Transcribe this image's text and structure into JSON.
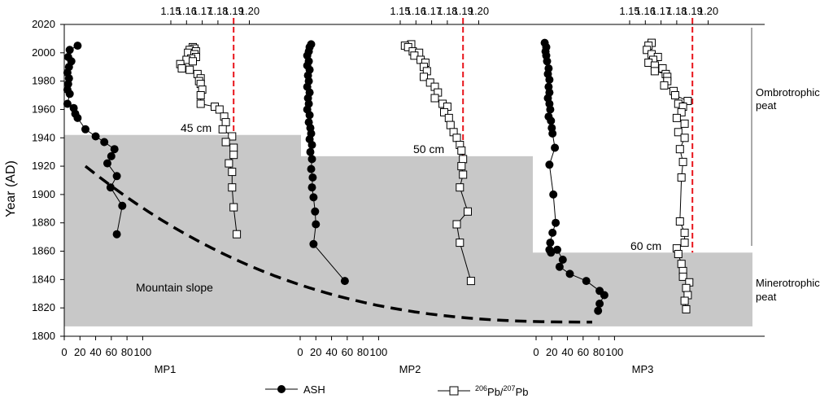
{
  "chart_data": {
    "type": "scatter",
    "title": "",
    "ylabel": "Year (AD)",
    "ylim": [
      1800,
      2020
    ],
    "yticks": [
      1800,
      1820,
      1840,
      1860,
      1880,
      1900,
      1920,
      1940,
      1960,
      1980,
      2000,
      2020
    ],
    "top_axis_ticks": [
      "1.15",
      "1.16",
      "1.17",
      "1.18",
      "1.19",
      "1.20"
    ],
    "bottom_axis_ticks": [
      "0",
      "20",
      "40",
      "60",
      "80",
      "100"
    ],
    "legend": {
      "ash": "ASH",
      "ratio_sup1": "206",
      "ratio_mid": "Pb/",
      "ratio_sup2": "207",
      "ratio_end": "Pb",
      "position": "bottom"
    },
    "annotations": {
      "mountain_slope": "Mountain slope",
      "ombrotrophic_1": "Ombrotrophic",
      "ombrotrophic_2": "peat",
      "minerotrophic_1": "Minerotrophic",
      "minerotrophic_2": "peat",
      "ref_ratio": 1.19
    },
    "panels": [
      {
        "name": "MP1",
        "depth_label": "45 cm",
        "boundary_year": 1942,
        "ash": [
          [
            17,
            2005
          ],
          [
            7,
            2002
          ],
          [
            5,
            1997
          ],
          [
            9,
            1994
          ],
          [
            6,
            1990
          ],
          [
            4,
            1986
          ],
          [
            6,
            1982
          ],
          [
            5,
            1978
          ],
          [
            4,
            1974
          ],
          [
            7,
            1971
          ],
          [
            4,
            1964
          ],
          [
            12,
            1961
          ],
          [
            14,
            1957
          ],
          [
            17,
            1954
          ],
          [
            27,
            1946
          ],
          [
            40,
            1941
          ],
          [
            51,
            1937
          ],
          [
            64,
            1932
          ],
          [
            60,
            1927
          ],
          [
            55,
            1922
          ],
          [
            67,
            1913
          ],
          [
            59,
            1905
          ],
          [
            74,
            1892
          ],
          [
            67,
            1872
          ]
        ],
        "ratio": [
          [
            1.164,
            2004
          ],
          [
            1.165,
            2003
          ],
          [
            1.162,
            2002
          ],
          [
            1.166,
            2001
          ],
          [
            1.161,
            2000
          ],
          [
            1.165,
            1999
          ],
          [
            1.166,
            1997
          ],
          [
            1.163,
            1996
          ],
          [
            1.16,
            1995
          ],
          [
            1.164,
            1994
          ],
          [
            1.156,
            1992
          ],
          [
            1.157,
            1989
          ],
          [
            1.162,
            1988
          ],
          [
            1.167,
            1985
          ],
          [
            1.169,
            1982
          ],
          [
            1.168,
            1980
          ],
          [
            1.169,
            1978
          ],
          [
            1.17,
            1974
          ],
          [
            1.169,
            1970
          ],
          [
            1.169,
            1964
          ],
          [
            1.178,
            1962
          ],
          [
            1.181,
            1960
          ],
          [
            1.184,
            1955
          ],
          [
            1.185,
            1951
          ],
          [
            1.183,
            1946
          ],
          [
            1.189,
            1941
          ],
          [
            1.185,
            1937
          ],
          [
            1.19,
            1933
          ],
          [
            1.19,
            1928
          ],
          [
            1.187,
            1922
          ],
          [
            1.189,
            1916
          ],
          [
            1.189,
            1905
          ],
          [
            1.19,
            1891
          ],
          [
            1.192,
            1872
          ]
        ]
      },
      {
        "name": "MP2",
        "depth_label": "50 cm",
        "boundary_year": 1927,
        "ash": [
          [
            14,
            2006
          ],
          [
            12,
            2004
          ],
          [
            11,
            2001
          ],
          [
            9,
            1998
          ],
          [
            11,
            1994
          ],
          [
            9,
            1991
          ],
          [
            12,
            1988
          ],
          [
            10,
            1984
          ],
          [
            11,
            1980
          ],
          [
            9,
            1976
          ],
          [
            12,
            1972
          ],
          [
            10,
            1968
          ],
          [
            11,
            1964
          ],
          [
            9,
            1960
          ],
          [
            12,
            1956
          ],
          [
            11,
            1951
          ],
          [
            13,
            1947
          ],
          [
            14,
            1943
          ],
          [
            12,
            1939
          ],
          [
            15,
            1935
          ],
          [
            13,
            1930
          ],
          [
            15,
            1925
          ],
          [
            14,
            1918
          ],
          [
            16,
            1912
          ],
          [
            15,
            1905
          ],
          [
            17,
            1898
          ],
          [
            19,
            1888
          ],
          [
            20,
            1879
          ],
          [
            17,
            1865
          ],
          [
            57,
            1839
          ]
        ],
        "ratio": [
          [
            1.157,
            2006
          ],
          [
            1.153,
            2005
          ],
          [
            1.155,
            2004
          ],
          [
            1.158,
            2001
          ],
          [
            1.162,
            2000
          ],
          [
            1.159,
            1998
          ],
          [
            1.163,
            1995
          ],
          [
            1.166,
            1993
          ],
          [
            1.165,
            1990
          ],
          [
            1.167,
            1987
          ],
          [
            1.165,
            1983
          ],
          [
            1.169,
            1979
          ],
          [
            1.172,
            1976
          ],
          [
            1.174,
            1972
          ],
          [
            1.172,
            1968
          ],
          [
            1.177,
            1964
          ],
          [
            1.18,
            1962
          ],
          [
            1.178,
            1958
          ],
          [
            1.181,
            1954
          ],
          [
            1.182,
            1949
          ],
          [
            1.184,
            1944
          ],
          [
            1.186,
            1940
          ],
          [
            1.188,
            1935
          ],
          [
            1.189,
            1931
          ],
          [
            1.19,
            1925
          ],
          [
            1.189,
            1920
          ],
          [
            1.19,
            1914
          ],
          [
            1.188,
            1905
          ],
          [
            1.193,
            1888
          ],
          [
            1.186,
            1879
          ],
          [
            1.188,
            1866
          ],
          [
            1.195,
            1839
          ]
        ]
      },
      {
        "name": "MP3",
        "depth_label": "60 cm",
        "boundary_year": 1859,
        "ash": [
          [
            11,
            2007
          ],
          [
            13,
            2004
          ],
          [
            12,
            2001
          ],
          [
            13,
            1998
          ],
          [
            14,
            1994
          ],
          [
            16,
            1989
          ],
          [
            15,
            1985
          ],
          [
            17,
            1981
          ],
          [
            16,
            1976
          ],
          [
            17,
            1972
          ],
          [
            15,
            1968
          ],
          [
            17,
            1964
          ],
          [
            18,
            1960
          ],
          [
            16,
            1955
          ],
          [
            19,
            1952
          ],
          [
            20,
            1947
          ],
          [
            21,
            1943
          ],
          [
            24,
            1933
          ],
          [
            17,
            1921
          ],
          [
            22,
            1900
          ],
          [
            25,
            1880
          ],
          [
            21,
            1873
          ],
          [
            18,
            1866
          ],
          [
            17,
            1861
          ],
          [
            19,
            1859
          ],
          [
            27,
            1861
          ],
          [
            34,
            1854
          ],
          [
            30,
            1849
          ],
          [
            43,
            1844
          ],
          [
            64,
            1839
          ],
          [
            81,
            1832
          ],
          [
            87,
            1829
          ],
          [
            81,
            1823
          ],
          [
            79,
            1818
          ]
        ],
        "ratio": [
          [
            1.164,
            2007
          ],
          [
            1.162,
            2005
          ],
          [
            1.161,
            2002
          ],
          [
            1.164,
            1999
          ],
          [
            1.168,
            1997
          ],
          [
            1.165,
            1995
          ],
          [
            1.162,
            1993
          ],
          [
            1.166,
            1991
          ],
          [
            1.171,
            1989
          ],
          [
            1.166,
            1987
          ],
          [
            1.173,
            1985
          ],
          [
            1.174,
            1983
          ],
          [
            1.174,
            1980
          ],
          [
            1.172,
            1977
          ],
          [
            1.178,
            1973
          ],
          [
            1.179,
            1970
          ],
          [
            1.187,
            1966
          ],
          [
            1.181,
            1964
          ],
          [
            1.184,
            1962
          ],
          [
            1.183,
            1958
          ],
          [
            1.18,
            1954
          ],
          [
            1.185,
            1950
          ],
          [
            1.181,
            1944
          ],
          [
            1.185,
            1940
          ],
          [
            1.182,
            1932
          ],
          [
            1.184,
            1923
          ],
          [
            1.183,
            1912
          ],
          [
            1.182,
            1881
          ],
          [
            1.185,
            1873
          ],
          [
            1.185,
            1866
          ],
          [
            1.18,
            1862
          ],
          [
            1.181,
            1858
          ],
          [
            1.183,
            1851
          ],
          [
            1.184,
            1846
          ],
          [
            1.184,
            1842
          ],
          [
            1.188,
            1838
          ],
          [
            1.186,
            1834
          ],
          [
            1.187,
            1829
          ],
          [
            1.185,
            1825
          ],
          [
            1.186,
            1819
          ]
        ]
      }
    ]
  }
}
